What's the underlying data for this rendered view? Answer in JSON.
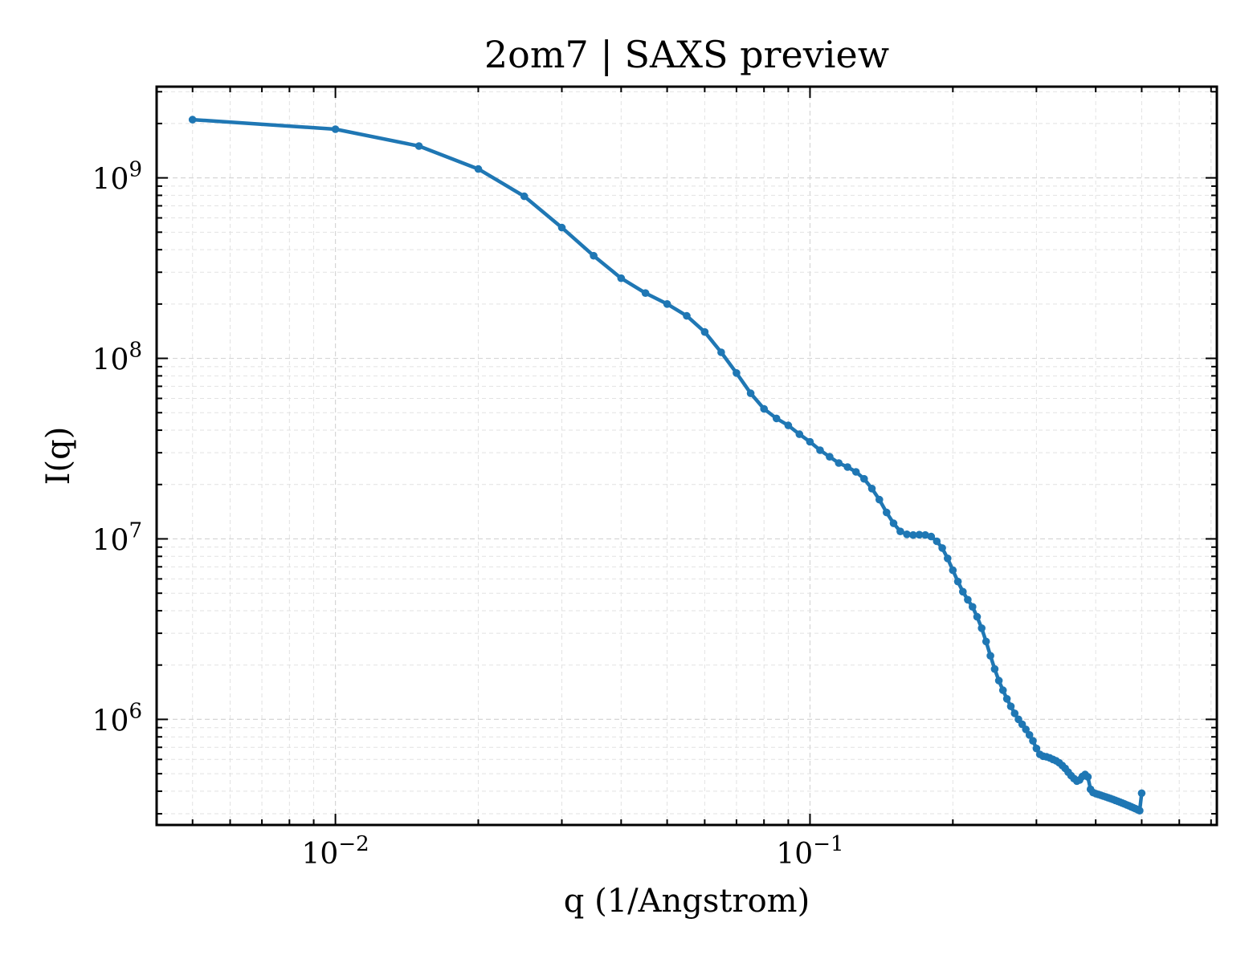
{
  "chart_data": {
    "type": "line",
    "title": "2om7 | SAXS preview",
    "xlabel": "q (1/Angstrom)",
    "ylabel": "I(q)",
    "xscale": "log",
    "yscale": "log",
    "xlim": [
      0.0042,
      0.72
    ],
    "ylim": [
      260000,
      3200000000
    ],
    "grid": true,
    "legend": "none",
    "color": "#1f77b4",
    "x_ticks": [
      {
        "value": 0.01,
        "label_base": "10",
        "label_exp": "−2"
      },
      {
        "value": 0.1,
        "label_base": "10",
        "label_exp": "−1"
      }
    ],
    "y_ticks": [
      {
        "value": 1000000,
        "label_base": "10",
        "label_exp": "6"
      },
      {
        "value": 10000000,
        "label_base": "10",
        "label_exp": "7"
      },
      {
        "value": 100000000,
        "label_base": "10",
        "label_exp": "8"
      },
      {
        "value": 1000000000,
        "label_base": "10",
        "label_exp": "9"
      }
    ],
    "series": [
      {
        "x": [
          0.005,
          0.01,
          0.015,
          0.02,
          0.025,
          0.03,
          0.035,
          0.04,
          0.045,
          0.05,
          0.055,
          0.06,
          0.065,
          0.07,
          0.075,
          0.08,
          0.085,
          0.09,
          0.095,
          0.1,
          0.105,
          0.11,
          0.115,
          0.12,
          0.125,
          0.13,
          0.135,
          0.14,
          0.145,
          0.15,
          0.155,
          0.16,
          0.165,
          0.17,
          0.175,
          0.18,
          0.185,
          0.19,
          0.195,
          0.2,
          0.205,
          0.21,
          0.215,
          0.22,
          0.225,
          0.23,
          0.235,
          0.24,
          0.245,
          0.25,
          0.255,
          0.26,
          0.265,
          0.27,
          0.275,
          0.28,
          0.285,
          0.29,
          0.295,
          0.3,
          0.305,
          0.31,
          0.315,
          0.32,
          0.325,
          0.33,
          0.335,
          0.34,
          0.345,
          0.35,
          0.355,
          0.36,
          0.365,
          0.37,
          0.375,
          0.38,
          0.385,
          0.39,
          0.395,
          0.4,
          0.405,
          0.41,
          0.415,
          0.42,
          0.425,
          0.43,
          0.435,
          0.44,
          0.445,
          0.45,
          0.455,
          0.46,
          0.465,
          0.47,
          0.475,
          0.48,
          0.485,
          0.49,
          0.495,
          0.5
        ],
        "y": [
          2100000000,
          1860000000,
          1500000000,
          1120000000,
          790000000,
          530000000,
          370000000,
          278000000,
          230000000,
          200000000,
          172000000,
          140000000,
          108000000,
          83000000,
          64000000,
          52500000,
          46500000,
          42500000,
          38000000,
          34500000,
          31000000,
          28500000,
          26300000,
          25000000,
          23500000,
          21500000,
          19000000,
          16500000,
          14000000,
          12200000,
          11000000,
          10600000,
          10500000,
          10550000,
          10500000,
          10300000,
          9700000,
          8900000,
          7800000,
          6700000,
          5800000,
          5100000,
          4600000,
          4200000,
          3700000,
          3200000,
          2700000,
          2250000,
          1900000,
          1640000,
          1450000,
          1300000,
          1180000,
          1080000,
          1000000,
          940000,
          880000,
          820000,
          760000,
          690000,
          640000,
          625000,
          620000,
          612000,
          600000,
          590000,
          575000,
          555000,
          535000,
          510000,
          488000,
          470000,
          455000,
          462000,
          483000,
          495000,
          480000,
          410000,
          393000,
          388000,
          384000,
          380000,
          376000,
          372000,
          368000,
          364000,
          360000,
          356000,
          352000,
          348000,
          344000,
          340000,
          336000,
          332000,
          328000,
          324000,
          320000,
          316000,
          312000,
          390000
        ]
      }
    ]
  }
}
